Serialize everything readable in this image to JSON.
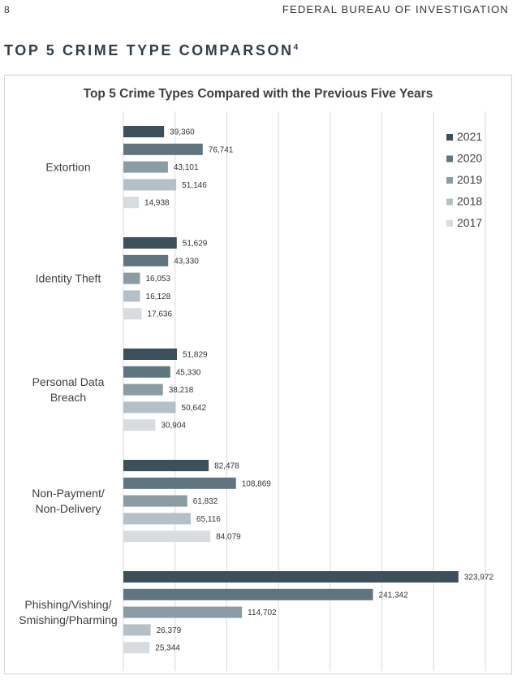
{
  "header": {
    "page_number": "8",
    "running_title": "FEDERAL BUREAU OF INVESTIGATION",
    "section_title": "TOP 5 CRIME TYPE COMPARSON",
    "section_footnote": "4"
  },
  "chart_data": {
    "type": "bar",
    "orientation": "horizontal",
    "title": "Top 5 Crime Types Compared with the Previous Five Years",
    "categories": [
      "Extortion",
      "Identity Theft",
      "Personal Data Breach",
      "Non-Payment/ Non-Delivery",
      "Phishing/Vishing/ Smishing/Pharming"
    ],
    "category_lines": [
      [
        "Extortion"
      ],
      [
        "Identity Theft"
      ],
      [
        "Personal Data",
        "Breach"
      ],
      [
        "Non-Payment/",
        "Non-Delivery"
      ],
      [
        "Phishing/Vishing/",
        "Smishing/Pharming"
      ]
    ],
    "series": [
      {
        "name": "2021",
        "color": "#3c505c",
        "values": [
          39360,
          51629,
          51829,
          82478,
          323972
        ],
        "labels": [
          "39,360",
          "51,629",
          "51,829",
          "82,478",
          "323,972"
        ]
      },
      {
        "name": "2020",
        "color": "#5f7580",
        "values": [
          76741,
          43330,
          45330,
          108869,
          241342
        ],
        "labels": [
          "76,741",
          "43,330",
          "45,330",
          "108,869",
          "241,342"
        ]
      },
      {
        "name": "2019",
        "color": "#8a9da5",
        "values": [
          43101,
          16053,
          38218,
          61832,
          114702
        ],
        "labels": [
          "43,101",
          "16,053",
          "38,218",
          "61,832",
          "114,702"
        ]
      },
      {
        "name": "2018",
        "color": "#b4c0c5",
        "values": [
          51146,
          16128,
          50642,
          65116,
          26379
        ],
        "labels": [
          "51,146",
          "16,128",
          "50,642",
          "65,116",
          "26,379"
        ]
      },
      {
        "name": "2017",
        "color": "#d6dce0",
        "values": [
          14938,
          17636,
          30904,
          84079,
          25344
        ],
        "labels": [
          "14,938",
          "17,636",
          "30,904",
          "84,079",
          "25,344"
        ]
      }
    ],
    "xlim": [
      0,
      350000
    ],
    "grid": true,
    "legend": "top-right"
  }
}
